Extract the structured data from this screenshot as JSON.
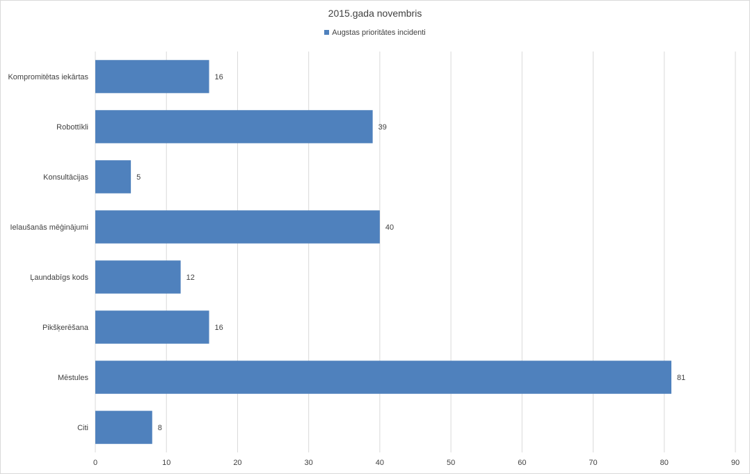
{
  "chart_data": {
    "type": "bar",
    "orientation": "horizontal",
    "title": "2015.gada novembris",
    "categories": [
      "Kompromitētas iekārtas",
      "Robottīkli",
      "Konsultācijas",
      "Ielaušanās mēģinājumi",
      "Ļaundabīgs kods",
      "Pikšķerēšana",
      "Mēstules",
      "Citi"
    ],
    "series": [
      {
        "name": "Augstas prioritātes incidenti",
        "values": [
          16,
          39,
          5,
          40,
          12,
          16,
          81,
          8
        ],
        "color": "#4f81bd"
      }
    ],
    "xlim": [
      0,
      90
    ],
    "xticks": [
      0,
      10,
      20,
      30,
      40,
      50,
      60,
      70,
      80,
      90
    ],
    "xlabel": "",
    "ylabel": "",
    "grid": "vertical",
    "legend": "top-center",
    "data_labels": true
  },
  "colors": {
    "bar": "#4f81bd",
    "grid": "#d9d9d9",
    "text": "#404040"
  }
}
